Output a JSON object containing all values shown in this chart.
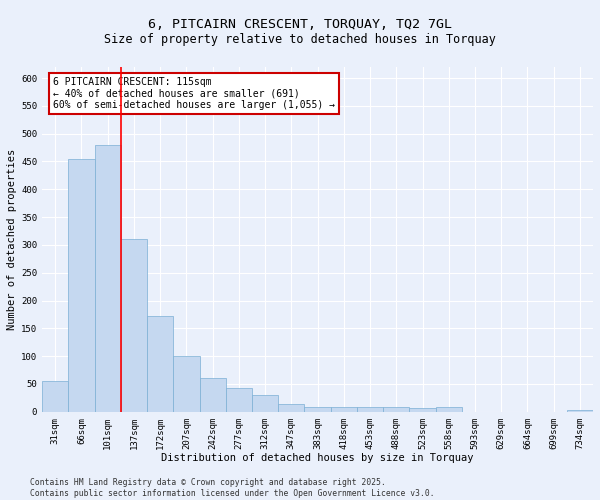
{
  "title_line1": "6, PITCAIRN CRESCENT, TORQUAY, TQ2 7GL",
  "title_line2": "Size of property relative to detached houses in Torquay",
  "xlabel": "Distribution of detached houses by size in Torquay",
  "ylabel": "Number of detached properties",
  "categories": [
    "31sqm",
    "66sqm",
    "101sqm",
    "137sqm",
    "172sqm",
    "207sqm",
    "242sqm",
    "277sqm",
    "312sqm",
    "347sqm",
    "383sqm",
    "418sqm",
    "453sqm",
    "488sqm",
    "523sqm",
    "558sqm",
    "593sqm",
    "629sqm",
    "664sqm",
    "699sqm",
    "734sqm"
  ],
  "values": [
    55,
    455,
    480,
    311,
    173,
    100,
    60,
    43,
    30,
    14,
    8,
    8,
    8,
    8,
    6,
    8,
    0,
    0,
    0,
    0,
    3
  ],
  "bar_color": "#c5d8f0",
  "bar_edge_color": "#7bafd4",
  "red_line_x": 2.5,
  "annotation_text": "6 PITCAIRN CRESCENT: 115sqm\n← 40% of detached houses are smaller (691)\n60% of semi-detached houses are larger (1,055) →",
  "annotation_box_color": "#ffffff",
  "annotation_box_edge_color": "#cc0000",
  "ylim": [
    0,
    620
  ],
  "yticks": [
    0,
    50,
    100,
    150,
    200,
    250,
    300,
    350,
    400,
    450,
    500,
    550,
    600
  ],
  "background_color": "#eaf0fb",
  "grid_color": "#ffffff",
  "footer_text": "Contains HM Land Registry data © Crown copyright and database right 2025.\nContains public sector information licensed under the Open Government Licence v3.0.",
  "title_fontsize": 9.5,
  "subtitle_fontsize": 8.5,
  "axis_label_fontsize": 7.5,
  "tick_fontsize": 6.5,
  "annotation_fontsize": 7.0,
  "footer_fontsize": 5.8
}
